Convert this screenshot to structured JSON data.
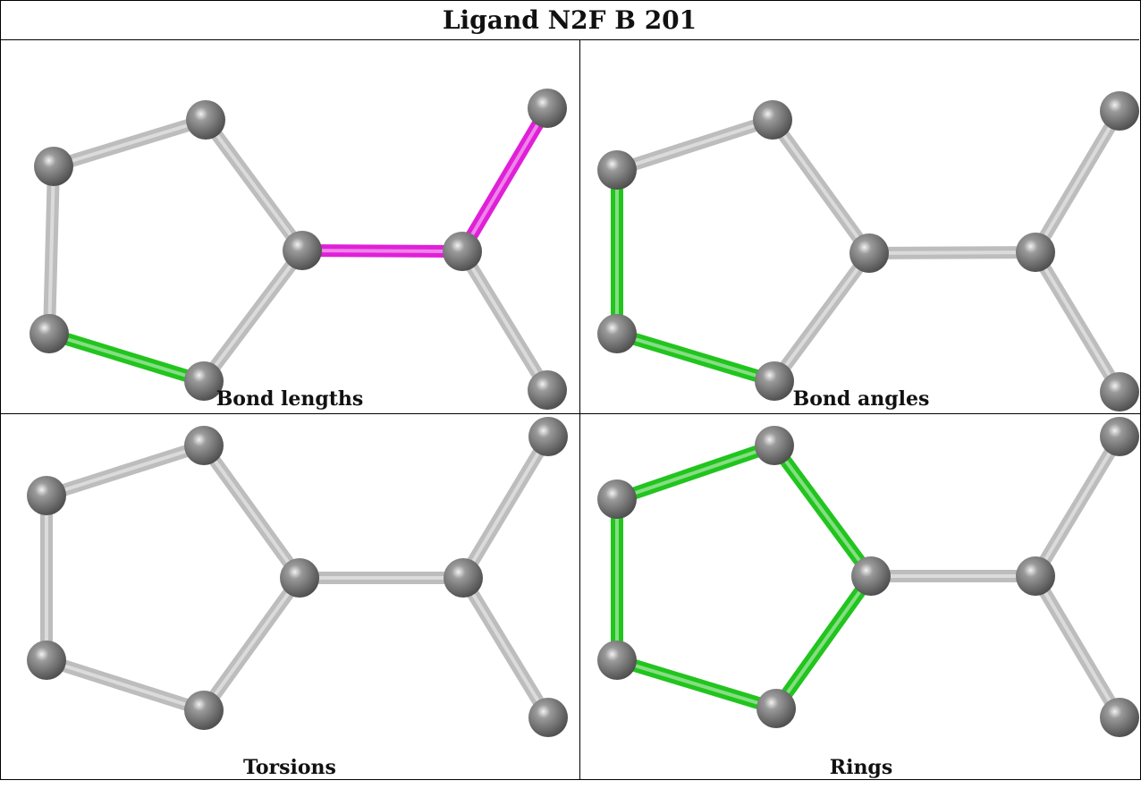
{
  "title": "Ligand N2F B 201",
  "colors": {
    "atom": "#6f6f6f",
    "bond": "#bdbdbd",
    "highlight_green": "#22c41e",
    "highlight_magenta": "#e020d8"
  },
  "panels": [
    {
      "caption": "Bond lengths",
      "highlights": {
        "b8": "magenta",
        "b9": "magenta",
        "b2": "green"
      }
    },
    {
      "caption": "Bond angles",
      "highlights": {
        "b1": "green",
        "b2": "green"
      }
    },
    {
      "caption": "Torsions",
      "highlights": {}
    },
    {
      "caption": "Rings",
      "highlights": {
        "b0": "green",
        "b1": "green",
        "b2": "green",
        "b3": "green",
        "b4": "green"
      }
    }
  ]
}
